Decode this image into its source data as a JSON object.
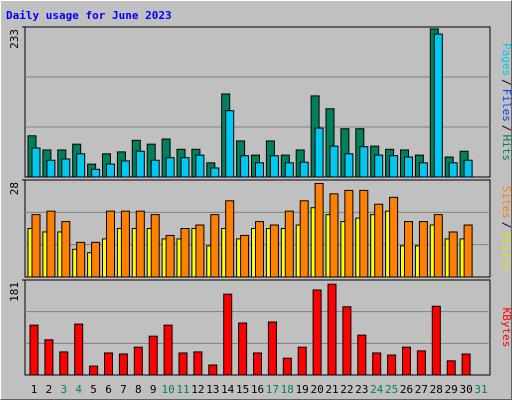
{
  "chart_data": {
    "type": "bar",
    "title": "Daily usage for June 2023",
    "categories": [
      "1",
      "2",
      "3",
      "4",
      "5",
      "6",
      "7",
      "8",
      "9",
      "10",
      "11",
      "12",
      "13",
      "14",
      "15",
      "16",
      "17",
      "18",
      "19",
      "20",
      "21",
      "22",
      "23",
      "24",
      "25",
      "26",
      "27",
      "28",
      "29",
      "30",
      "31"
    ],
    "category_colors": [
      "#000000",
      "#000000",
      "#00805c",
      "#00805c",
      "#000000",
      "#000000",
      "#000000",
      "#000000",
      "#000000",
      "#00805c",
      "#00805c",
      "#000000",
      "#000000",
      "#000000",
      "#000000",
      "#000000",
      "#00805c",
      "#00805c",
      "#000000",
      "#000000",
      "#000000",
      "#000000",
      "#000000",
      "#00805c",
      "#00805c",
      "#000000",
      "#000000",
      "#000000",
      "#000000",
      "#000000",
      "#00805c"
    ],
    "legend_separator": "/",
    "grid_divisions": 3,
    "panels": [
      {
        "ylim": [
          0,
          233
        ],
        "yticks": [
          233
        ],
        "series": [
          {
            "name": "Hits",
            "color": "#00805c",
            "values": [
              64,
              42,
              42,
              51,
              20,
              36,
              39,
              57,
              51,
              59,
              43,
              43,
              22,
              129,
              56,
              34,
              56,
              34,
              42,
              126,
              106,
              75,
              75,
              48,
              43,
              42,
              34,
              230,
              31,
              40,
              null
            ]
          },
          {
            "name": "Pages",
            "color": "#00c8f0",
            "values": [
              45,
              26,
              28,
              36,
              12,
              20,
              25,
              40,
              26,
              30,
              30,
              34,
              14,
              103,
              33,
              22,
              33,
              22,
              23,
              76,
              48,
              36,
              47,
              34,
              33,
              31,
              22,
              222,
              22,
              26,
              null
            ]
          }
        ],
        "legend": [
          {
            "name": "Pages",
            "color": "#00c8f0"
          },
          {
            "name": "Files",
            "color": "#0040ff"
          },
          {
            "name": "Hits",
            "color": "#00805c"
          }
        ]
      },
      {
        "ylim": [
          0,
          28
        ],
        "yticks": [
          28
        ],
        "series": [
          {
            "name": "Visits",
            "color": "#ffff00",
            "values": [
              14,
              13,
              13,
              8,
              7,
              11,
              14,
              14,
              14,
              11,
              11,
              14,
              9,
              14,
              11,
              14,
              14,
              14,
              15,
              20,
              18,
              16,
              17,
              18,
              19,
              9,
              9,
              15,
              11,
              11,
              null
            ]
          },
          {
            "name": "Sites",
            "color": "#ff8000",
            "values": [
              18,
              19,
              16,
              10,
              10,
              19,
              19,
              19,
              18,
              12,
              14,
              15,
              18,
              22,
              12,
              16,
              15,
              19,
              22,
              27,
              24,
              25,
              25,
              21,
              23,
              16,
              16,
              18,
              13,
              15,
              null
            ]
          }
        ],
        "legend": [
          {
            "name": "Sites",
            "color": "#ff8000"
          },
          {
            "name": "Visits",
            "color": "#e8d800"
          }
        ]
      },
      {
        "ylim": [
          0,
          181
        ],
        "yticks": [
          181
        ],
        "series": [
          {
            "name": "KBytes",
            "color": "#ff0000",
            "values": [
              95,
              67,
              44,
              97,
              17,
              42,
              40,
              53,
              74,
              95,
              42,
              44,
              19,
              154,
              99,
              42,
              101,
              32,
              53,
              162,
              173,
              130,
              76,
              42,
              38,
              53,
              46,
              131,
              27,
              40,
              null
            ]
          }
        ],
        "legend": [
          {
            "name": "KBytes",
            "color": "#ff0000"
          }
        ]
      }
    ]
  }
}
